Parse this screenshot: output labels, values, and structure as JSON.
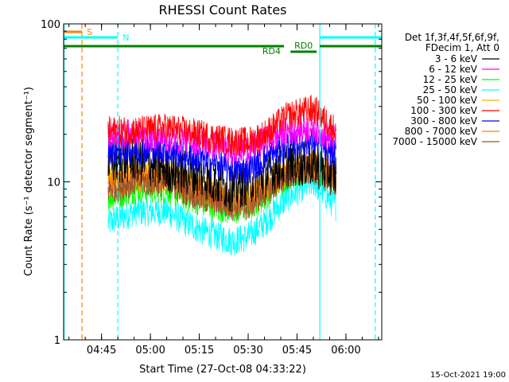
{
  "chart_data": {
    "type": "line",
    "title": "RHESSI Count Rates",
    "xlabel": "Start Time (27-Oct-08 04:33:22)",
    "ylabel": "Count Rate (s⁻¹ detector segment⁻¹)",
    "x_axis": {
      "unit": "time (UT, 27-Oct-08)",
      "range": [
        "04:33:22",
        "06:11:00"
      ],
      "tick_labels": [
        "04:45",
        "05:00",
        "05:15",
        "05:30",
        "05:45",
        "06:00"
      ]
    },
    "y_axis": {
      "scale": "log",
      "range": [
        1,
        100
      ],
      "tick_labels": [
        "1",
        "10",
        "100"
      ]
    },
    "legend": {
      "header": [
        "Det 1f,3f,4f,5f,6f,9f,",
        "FDecim 1, Att 0"
      ],
      "placement": "right"
    },
    "series": [
      {
        "name": "3 - 6 keV",
        "color": "#000000",
        "x": [
          "04:47",
          "04:55",
          "05:05",
          "05:15",
          "05:25",
          "05:30",
          "05:35",
          "05:42",
          "05:50",
          "05:57"
        ],
        "y": [
          13,
          14,
          12,
          11,
          9,
          10,
          11,
          13,
          13,
          11
        ]
      },
      {
        "name": "6 - 12 keV",
        "color": "#ff00ff",
        "x": [
          "04:47",
          "04:55",
          "05:05",
          "05:15",
          "05:25",
          "05:30",
          "05:35",
          "05:42",
          "05:50",
          "05:57"
        ],
        "y": [
          20,
          20,
          19,
          18,
          16,
          16,
          18,
          21,
          22,
          18
        ]
      },
      {
        "name": "12 - 25 keV",
        "color": "#00ff00",
        "x": [
          "04:47",
          "04:55",
          "05:05",
          "05:15",
          "05:25",
          "05:30",
          "05:35",
          "05:42",
          "05:50",
          "05:57"
        ],
        "y": [
          8,
          9,
          9,
          7.5,
          6.5,
          7,
          8,
          11,
          12,
          10
        ]
      },
      {
        "name": "25 - 50 keV",
        "color": "#00ffff",
        "x": [
          "04:47",
          "04:55",
          "05:05",
          "05:15",
          "05:25",
          "05:30",
          "05:35",
          "05:42",
          "05:50",
          "05:57"
        ],
        "y": [
          5.5,
          6.5,
          6.5,
          5,
          4.2,
          4.5,
          5.5,
          8,
          10,
          7
        ]
      },
      {
        "name": "50 - 100 keV",
        "color": "#ffb400",
        "x": [
          "04:47",
          "04:55",
          "05:05",
          "05:15",
          "05:25",
          "05:30",
          "05:35",
          "05:42",
          "05:50",
          "05:57"
        ],
        "y": [
          10,
          11,
          11,
          9,
          8,
          8,
          9.5,
          11.5,
          13,
          11
        ]
      },
      {
        "name": "100 - 300 keV",
        "color": "#ff0000",
        "x": [
          "04:47",
          "04:55",
          "05:05",
          "05:15",
          "05:25",
          "05:30",
          "05:35",
          "05:42",
          "05:50",
          "05:57"
        ],
        "y": [
          21,
          21,
          22,
          20,
          18,
          18,
          20,
          26,
          29,
          21
        ]
      },
      {
        "name": "300 - 800 keV",
        "color": "#0000ff",
        "x": [
          "04:47",
          "04:55",
          "05:05",
          "05:15",
          "05:25",
          "05:30",
          "05:35",
          "05:42",
          "05:50",
          "05:57"
        ],
        "y": [
          16,
          16,
          16,
          14,
          12,
          12,
          14,
          17,
          18,
          15
        ]
      },
      {
        "name": "800 - 7000 keV",
        "color": "#ff8000",
        "x": [
          "04:47",
          "04:55",
          "05:05",
          "05:15",
          "05:25",
          "05:30",
          "05:35",
          "05:42",
          "05:50",
          "05:57"
        ],
        "y": [
          9.5,
          10.5,
          10.5,
          8.5,
          7.5,
          7.5,
          9,
          11.5,
          12.5,
          10.5
        ]
      },
      {
        "name": "7000 - 15000 keV",
        "color": "#a0522d",
        "x": [
          "04:47",
          "04:55",
          "05:05",
          "05:15",
          "05:25",
          "05:30",
          "05:35",
          "05:42",
          "05:50",
          "05:57"
        ],
        "y": [
          9,
          10,
          10,
          8,
          7,
          7,
          8.5,
          11,
          12,
          10
        ]
      }
    ],
    "annotations": {
      "flags": [
        {
          "label": "S",
          "color": "#ff8000"
        },
        {
          "label": "N",
          "color": "#00ffff"
        },
        {
          "label": "RD0",
          "color": "#008000"
        },
        {
          "label": "RD4",
          "color": "#008000"
        }
      ],
      "vertical_lines": [
        {
          "time": "04:33:30",
          "color": "#00ffff",
          "style": "solid"
        },
        {
          "time": "04:39:00",
          "color": "#ff8000",
          "style": "dashed"
        },
        {
          "time": "04:50:00",
          "color": "#00ffff",
          "style": "dashed"
        },
        {
          "time": "05:52:00",
          "color": "#00ffff",
          "style": "solid"
        },
        {
          "time": "06:09:00",
          "color": "#00ffff",
          "style": "dashed"
        }
      ]
    },
    "footer": "15-Oct-2021 19:00"
  }
}
